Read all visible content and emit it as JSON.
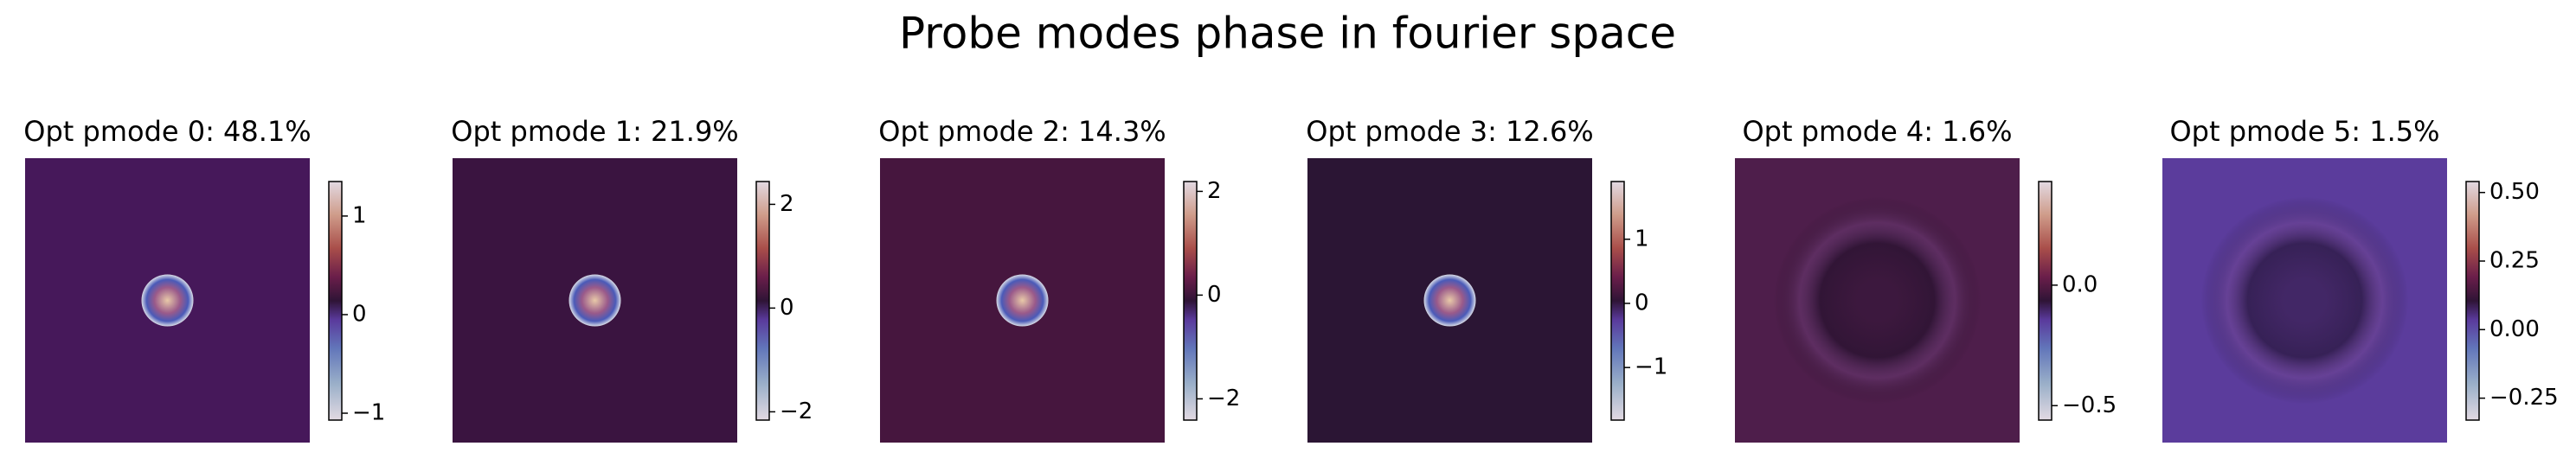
{
  "title": "Probe modes phase in fourier space",
  "chart_data": [
    {
      "type": "heatmap",
      "title": "Opt pmode 0: 48.1%",
      "color": "#46185a",
      "clim": [
        -1.07,
        1.35
      ],
      "cticks": [
        {
          "value": -1,
          "label": "−1"
        },
        0,
        1
      ]
    },
    {
      "type": "heatmap",
      "title": "Opt pmode 1: 21.9%",
      "color": "#3a1440",
      "clim": [
        -2.16,
        2.44
      ],
      "cticks": [
        {
          "value": -2,
          "label": "−2"
        },
        0,
        2
      ]
    },
    {
      "type": "heatmap",
      "title": "Opt pmode 2: 14.3%",
      "color": "#46163e",
      "clim": [
        -2.41,
        2.19
      ],
      "cticks": [
        {
          "value": -2,
          "label": "−2"
        },
        0,
        2
      ]
    },
    {
      "type": "heatmap",
      "title": "Opt pmode 3: 12.6%",
      "color": "#2b1534",
      "clim": [
        -1.82,
        1.9
      ],
      "cticks": [
        {
          "value": -1,
          "label": "−1"
        },
        0,
        1
      ]
    },
    {
      "type": "heatmap",
      "title": "Opt pmode 4: 1.6%",
      "color": "#4e1e4b",
      "clim": [
        -0.56,
        0.43
      ],
      "cticks": [
        {
          "value": -0.5,
          "label": "−0.5"
        },
        {
          "value": 0,
          "label": "0.0"
        }
      ]
    },
    {
      "type": "heatmap",
      "title": "Opt pmode 5: 1.5%",
      "color": "#5b3c9c",
      "clim": [
        -0.33,
        0.54
      ],
      "cticks": [
        {
          "value": -0.25,
          "label": "−0.25"
        },
        {
          "value": 0,
          "label": "0.00"
        },
        {
          "value": 0.25,
          "label": "0.25"
        },
        {
          "value": 0.5,
          "label": "0.50"
        }
      ]
    }
  ]
}
